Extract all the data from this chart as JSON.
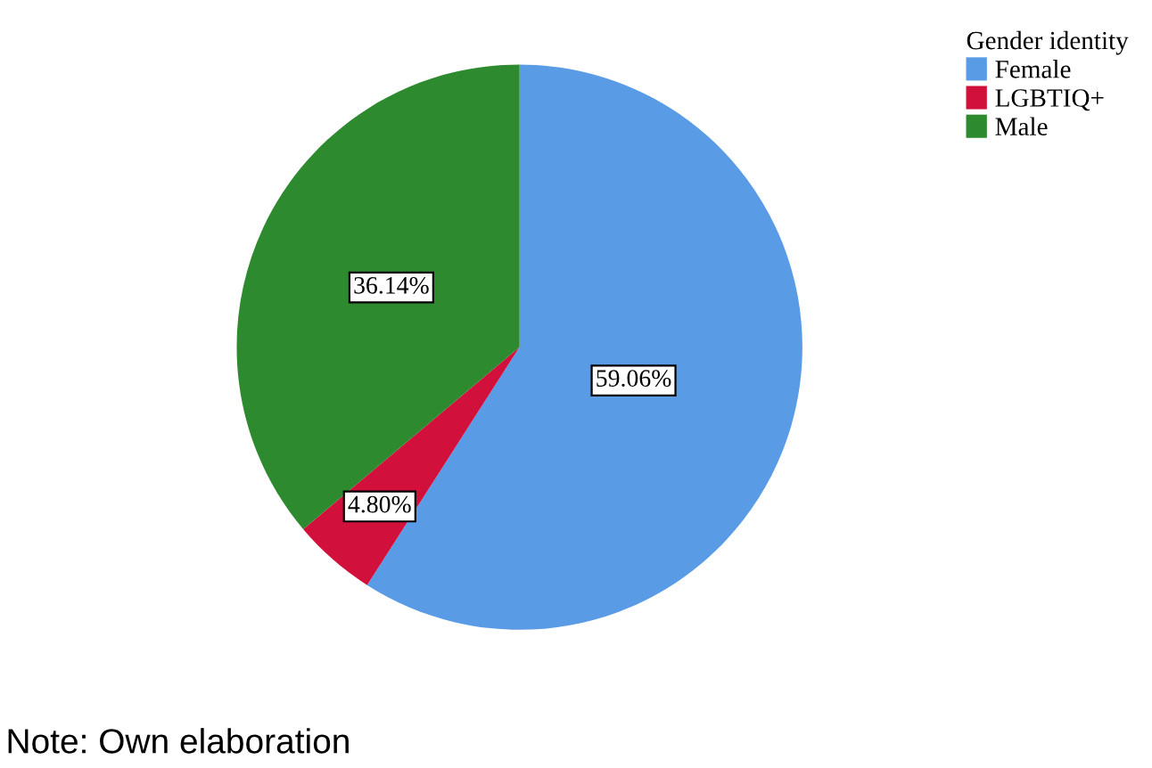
{
  "chart_data": {
    "type": "pie",
    "legend_title": "Gender identity",
    "categories": [
      "Female",
      "LGBTIQ+",
      "Male"
    ],
    "values": [
      59.06,
      4.8,
      36.14
    ],
    "value_labels": [
      "59.06%",
      "4.80%",
      "36.14%"
    ],
    "colors": [
      "#5a9be6",
      "#d1103c",
      "#2d8a2f"
    ],
    "legend": "top right",
    "annotations": [
      "Note: Own elaboration"
    ]
  }
}
